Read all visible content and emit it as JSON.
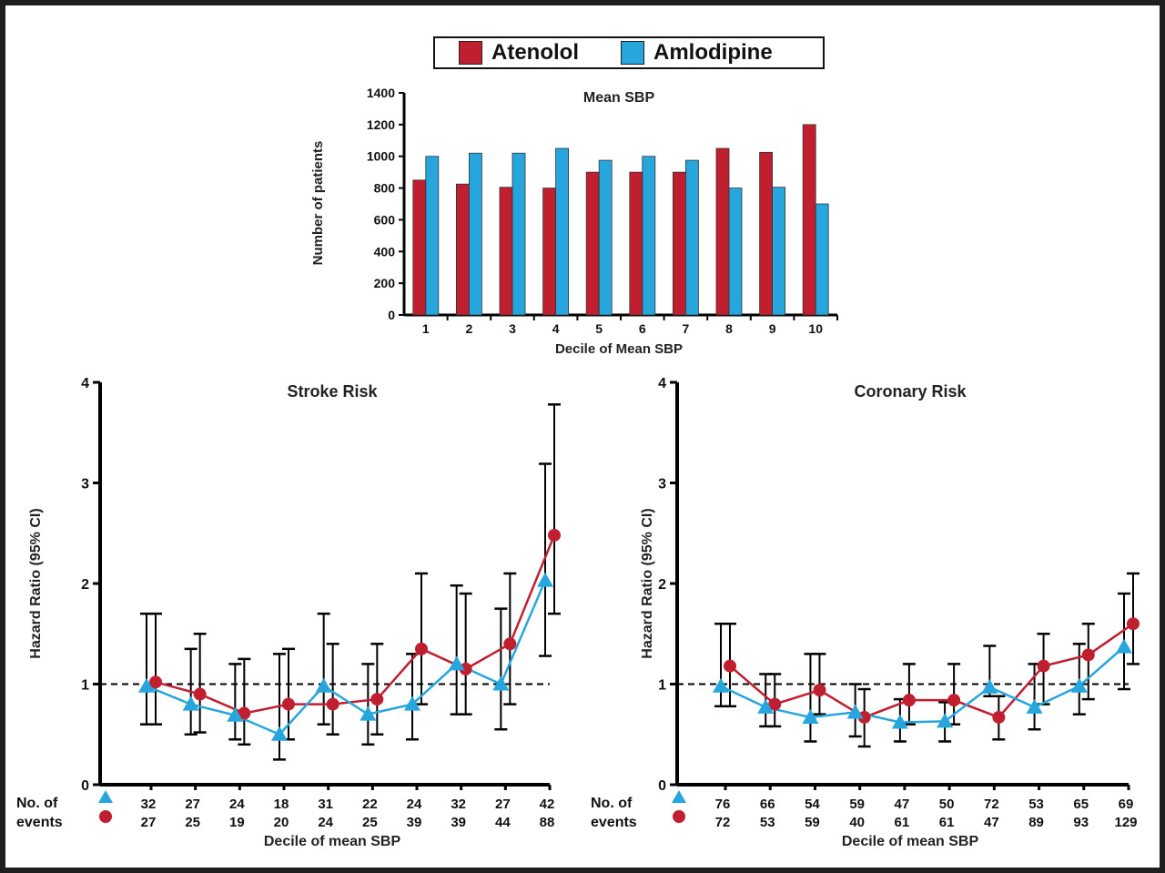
{
  "legend": {
    "items": [
      {
        "label": "Atenolol",
        "color": "#c01f30"
      },
      {
        "label": "Amlodipine",
        "color": "#26a6dd"
      }
    ]
  },
  "chart_data": [
    {
      "type": "bar",
      "title": "Mean SBP",
      "xlabel": "Decile of Mean SBP",
      "ylabel": "Number of patients",
      "ylim": [
        0,
        1400
      ],
      "yticks": [
        "0",
        "200",
        "400",
        "600",
        "800",
        "1000",
        "1200",
        "1400"
      ],
      "categories": [
        "1",
        "2",
        "3",
        "4",
        "5",
        "6",
        "7",
        "8",
        "9",
        "10"
      ],
      "series": [
        {
          "name": "Atenolol",
          "color": "#c01f30",
          "values": [
            850,
            825,
            805,
            800,
            900,
            900,
            900,
            1050,
            1025,
            1200
          ]
        },
        {
          "name": "Amlodipine",
          "color": "#26a6dd",
          "values": [
            1000,
            1020,
            1020,
            1050,
            975,
            1000,
            975,
            800,
            805,
            700
          ]
        }
      ]
    },
    {
      "type": "line",
      "title": "Stroke Risk",
      "xlabel": "Decile of mean SBP",
      "ylabel": "Hazard Ratio (95% CI)",
      "ylim": [
        0,
        4
      ],
      "yticks": [
        "0",
        "1",
        "2",
        "3",
        "4"
      ],
      "reference_line": 1,
      "events_label": [
        "No. of",
        "events"
      ],
      "x": [
        1,
        2,
        3,
        4,
        5,
        6,
        7,
        8,
        9,
        10
      ],
      "series": [
        {
          "name": "Amlodipine",
          "marker": "triangle",
          "color": "#26a6dd",
          "values": [
            0.98,
            0.8,
            0.69,
            0.5,
            0.98,
            0.7,
            0.8,
            1.2,
            1.0,
            2.03
          ],
          "ci_low": [
            0.6,
            0.5,
            0.45,
            0.25,
            0.6,
            0.4,
            0.45,
            0.7,
            0.55,
            1.28
          ],
          "ci_high": [
            1.7,
            1.35,
            1.2,
            1.3,
            1.7,
            1.2,
            1.3,
            1.98,
            1.75,
            3.19
          ],
          "events": [
            "32",
            "27",
            "24",
            "18",
            "31",
            "22",
            "24",
            "32",
            "27",
            "42"
          ]
        },
        {
          "name": "Atenolol",
          "marker": "circle",
          "color": "#c01f30",
          "values": [
            1.02,
            0.9,
            0.71,
            0.8,
            0.8,
            0.85,
            1.35,
            1.15,
            1.4,
            2.48
          ],
          "ci_low": [
            0.6,
            0.52,
            0.4,
            0.45,
            0.5,
            0.5,
            0.8,
            0.7,
            0.8,
            1.7
          ],
          "ci_high": [
            1.7,
            1.5,
            1.25,
            1.35,
            1.4,
            1.4,
            2.1,
            1.9,
            2.1,
            3.78
          ],
          "events": [
            "27",
            "25",
            "19",
            "20",
            "24",
            "25",
            "39",
            "39",
            "44",
            "88"
          ]
        }
      ]
    },
    {
      "type": "line",
      "title": "Coronary Risk",
      "xlabel": "Decile of mean SBP",
      "ylabel": "Hazard Ratio (95% CI)",
      "ylim": [
        0,
        4
      ],
      "yticks": [
        "0",
        "1",
        "2",
        "3",
        "4"
      ],
      "reference_line": 1,
      "events_label": [
        "No. of",
        "events"
      ],
      "x": [
        1,
        2,
        3,
        4,
        5,
        6,
        7,
        8,
        9,
        10
      ],
      "series": [
        {
          "name": "Amlodipine",
          "marker": "triangle",
          "color": "#26a6dd",
          "values": [
            0.98,
            0.77,
            0.67,
            0.72,
            0.62,
            0.63,
            0.97,
            0.77,
            0.98,
            1.37
          ],
          "ci_low": [
            0.78,
            0.58,
            0.43,
            0.48,
            0.43,
            0.43,
            0.88,
            0.55,
            0.7,
            0.95
          ],
          "ci_high": [
            1.6,
            1.1,
            1.3,
            1.0,
            0.85,
            0.82,
            1.38,
            1.2,
            1.4,
            1.9
          ],
          "events": [
            "76",
            "66",
            "54",
            "59",
            "47",
            "50",
            "72",
            "53",
            "65",
            "69"
          ]
        },
        {
          "name": "Atenolol",
          "marker": "circle",
          "color": "#c01f30",
          "values": [
            1.18,
            0.8,
            0.94,
            0.67,
            0.84,
            0.84,
            0.67,
            1.18,
            1.29,
            1.6
          ],
          "ci_low": [
            0.78,
            0.58,
            0.7,
            0.38,
            0.6,
            0.6,
            0.45,
            0.8,
            0.85,
            1.2
          ],
          "ci_high": [
            1.6,
            1.1,
            1.3,
            0.95,
            1.2,
            1.2,
            0.88,
            1.5,
            1.6,
            2.1
          ],
          "events": [
            "72",
            "53",
            "59",
            "40",
            "61",
            "61",
            "47",
            "89",
            "93",
            "129"
          ]
        }
      ]
    }
  ]
}
